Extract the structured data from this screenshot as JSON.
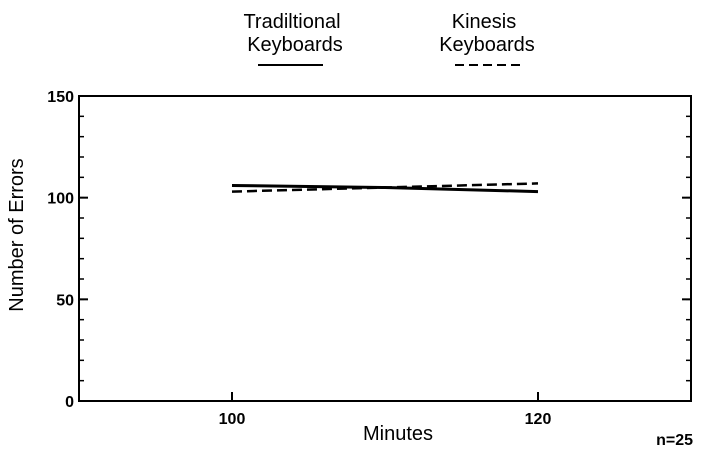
{
  "chart_data": {
    "type": "line",
    "title": "",
    "xlabel": "Minutes",
    "ylabel": "Number of Errors",
    "xlim": [
      90,
      130
    ],
    "ylim": [
      0,
      150
    ],
    "x_ticks": [
      100,
      120
    ],
    "y_ticks": [
      0,
      50,
      100,
      150
    ],
    "grid": false,
    "legend_position": "top",
    "annotation": "n=25",
    "series": [
      {
        "name": "Tradiltional\nKeyboards",
        "line_style": "solid",
        "color": "#000000",
        "points": [
          [
            100,
            106
          ],
          [
            110,
            105
          ],
          [
            120,
            103
          ]
        ]
      },
      {
        "name": "Kinesis\nKeyboards",
        "line_style": "dashed",
        "color": "#000000",
        "points": [
          [
            100,
            103
          ],
          [
            110,
            105
          ],
          [
            120,
            107
          ]
        ]
      }
    ]
  }
}
